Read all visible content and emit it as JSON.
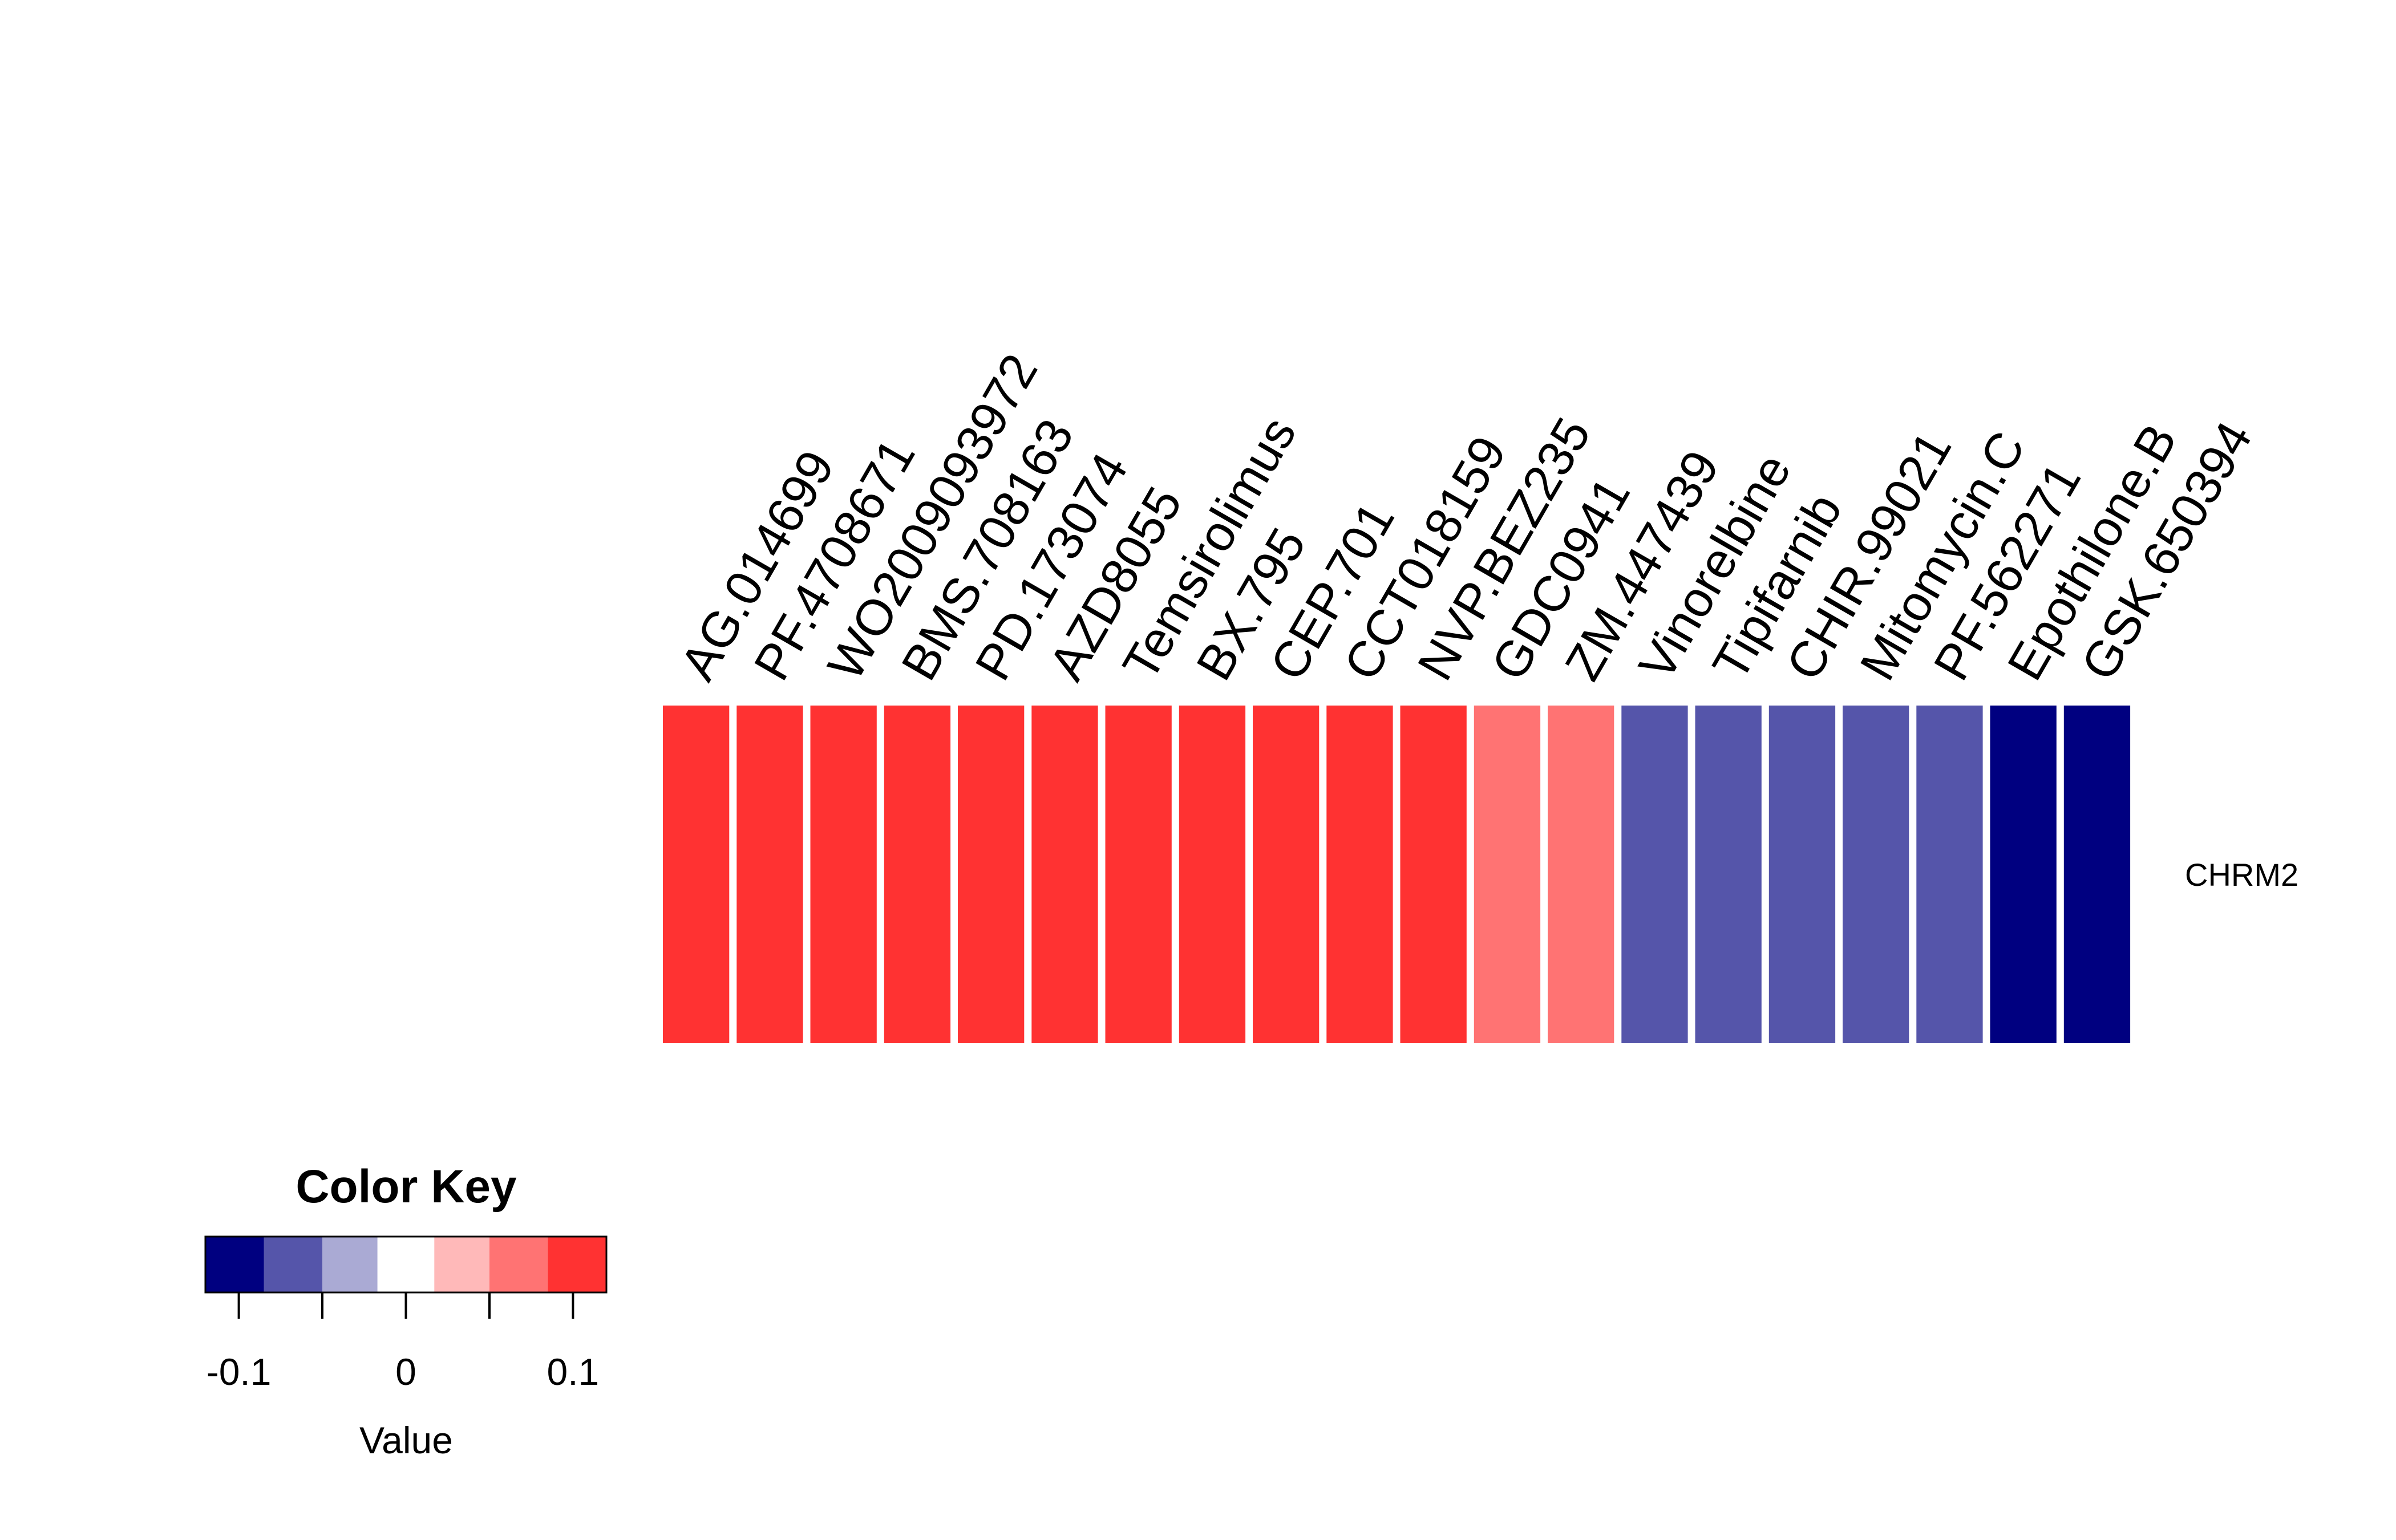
{
  "chart_data": {
    "type": "heatmap",
    "row_labels": [
      "CHRM2"
    ],
    "col_labels": [
      "AG.014699",
      "PF.4708671",
      "WO2009093972",
      "BMS.708163",
      "PD.173074",
      "AZD8055",
      "Temsirolimus",
      "BX.795",
      "CEP.701",
      "CCT018159",
      "NVP.BEZ235",
      "GDC0941",
      "ZM.447439",
      "Vinorelbine",
      "Tipifarnib",
      "CHIR.99021",
      "Mitomycin.C",
      "PF.562271",
      "Epothilone.B",
      "GSK.650394"
    ],
    "values": [
      [
        0.11,
        0.11,
        0.11,
        0.11,
        0.11,
        0.11,
        0.11,
        0.11,
        0.11,
        0.11,
        0.11,
        0.07,
        0.07,
        -0.07,
        -0.07,
        -0.07,
        -0.07,
        -0.07,
        -0.11,
        -0.11
      ]
    ],
    "color_key": {
      "title": "Color Key",
      "xlabel": "Value",
      "breaks": [
        -0.12,
        -0.085,
        -0.05,
        -0.017,
        0.017,
        0.05,
        0.085,
        0.12
      ],
      "colors": [
        "#000080",
        "#5555AA",
        "#AAAAD4",
        "#FFFFFF",
        "#FFB9B9",
        "#FF7373",
        "#FF3232"
      ],
      "ticks": [
        -0.1,
        -0.05,
        0,
        0.05,
        0.1
      ],
      "tick_labels": [
        "-0.1",
        "",
        "0",
        "",
        "0.1"
      ]
    }
  }
}
